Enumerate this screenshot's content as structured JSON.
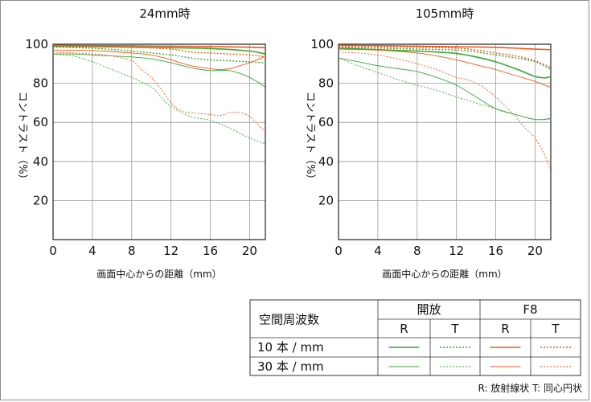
{
  "colors": {
    "green": "#3aa635",
    "orange": "#ec5a1c",
    "grid": "#9a9a9a",
    "axis": "#222222"
  },
  "chart_data": [
    {
      "type": "line",
      "title": "24mm時",
      "xlabel": "画面中心からの距離（mm）",
      "ylabel": "コントラスト（%）",
      "xlim": [
        0,
        21.6
      ],
      "ylim": [
        0,
        100
      ],
      "xticks": [
        0,
        4,
        8,
        12,
        16,
        20
      ],
      "yticks": [
        20,
        40,
        60,
        80,
        100
      ],
      "series": [
        {
          "name": "開放 R 10本/mm",
          "color": "green",
          "width": 1.6,
          "dash": "",
          "x": [
            0,
            4,
            8,
            12,
            16,
            20,
            21.6
          ],
          "y": [
            99,
            98.8,
            98.5,
            98.2,
            97.8,
            96.5,
            95
          ]
        },
        {
          "name": "開放 T 10本/mm",
          "color": "green",
          "width": 1.4,
          "dash": "2,2",
          "x": [
            0,
            4,
            8,
            12,
            14,
            16,
            18,
            20,
            21.6
          ],
          "y": [
            98.5,
            98,
            96.5,
            94.5,
            93,
            92,
            91.5,
            91,
            90.5
          ]
        },
        {
          "name": "F8 R 10本/mm",
          "color": "orange",
          "width": 1.6,
          "dash": "",
          "x": [
            0,
            4,
            8,
            12,
            16,
            20,
            21.6
          ],
          "y": [
            99.5,
            99.3,
            99.2,
            99,
            98.8,
            98.5,
            98.2
          ]
        },
        {
          "name": "F8 T 10本/mm",
          "color": "orange",
          "width": 1.4,
          "dash": "2,2",
          "x": [
            0,
            4,
            8,
            12,
            14,
            16,
            18,
            20,
            21.6
          ],
          "y": [
            99.2,
            99,
            98.5,
            97.5,
            96,
            95.5,
            95,
            94.5,
            93.5
          ]
        },
        {
          "name": "開放 R 30本/mm",
          "color": "green",
          "width": 0.9,
          "dash": "",
          "x": [
            0,
            2,
            4,
            6,
            8,
            10,
            12,
            14,
            16,
            18,
            20,
            21.6
          ],
          "y": [
            95,
            95,
            94.5,
            94,
            93.5,
            92.5,
            90.5,
            88,
            86.5,
            86.5,
            83,
            78
          ]
        },
        {
          "name": "開放 T 30本/mm",
          "color": "green",
          "width": 0.9,
          "dash": "2,2",
          "x": [
            0,
            2,
            4,
            6,
            8,
            10,
            11,
            12,
            14,
            16,
            18,
            20,
            21.6
          ],
          "y": [
            95,
            94,
            91,
            87,
            83,
            78,
            73,
            68,
            63,
            61,
            57,
            52,
            49
          ]
        },
        {
          "name": "F8 R 30本/mm",
          "color": "orange",
          "width": 0.9,
          "dash": "",
          "x": [
            0,
            4,
            8,
            10,
            12,
            14,
            16,
            17,
            18,
            19,
            20,
            21,
            21.6
          ],
          "y": [
            97,
            96.8,
            95.5,
            94.5,
            92,
            89,
            87.5,
            87,
            87.5,
            89,
            90.5,
            92.5,
            94
          ]
        },
        {
          "name": "F8 T 30本/mm",
          "color": "orange",
          "width": 0.9,
          "dash": "2,2",
          "x": [
            0,
            2,
            4,
            6,
            8,
            9,
            10,
            11,
            12,
            13,
            14,
            16,
            17,
            18,
            19,
            20,
            21,
            21.6
          ],
          "y": [
            96,
            95.5,
            95,
            94,
            91.5,
            87,
            83,
            77,
            70,
            66,
            65,
            64,
            63.5,
            65,
            65,
            63,
            58,
            55
          ]
        }
      ]
    },
    {
      "type": "line",
      "title": "105mm時",
      "xlabel": "画面中心からの距離（mm）",
      "ylabel": "コントラスト（%）",
      "xlim": [
        0,
        21.6
      ],
      "ylim": [
        0,
        100
      ],
      "xticks": [
        0,
        4,
        8,
        12,
        16,
        20
      ],
      "yticks": [
        20,
        40,
        60,
        80,
        100
      ],
      "series": [
        {
          "name": "開放 R 10本/mm",
          "color": "green",
          "width": 1.6,
          "dash": "",
          "x": [
            0,
            4,
            8,
            10,
            12,
            14,
            16,
            18,
            19,
            20,
            21,
            21.6
          ],
          "y": [
            98,
            97.2,
            96.5,
            96,
            95.3,
            93.5,
            91,
            87.5,
            85.5,
            83.5,
            82.8,
            83.5
          ]
        },
        {
          "name": "開放 T 10本/mm",
          "color": "green",
          "width": 1.4,
          "dash": "2,2",
          "x": [
            0,
            4,
            8,
            12,
            14,
            16,
            18,
            20,
            21.6
          ],
          "y": [
            98.5,
            98,
            97.5,
            97,
            96,
            94.5,
            93,
            91,
            87
          ]
        },
        {
          "name": "F8 R 10本/mm",
          "color": "orange",
          "width": 1.6,
          "dash": "",
          "x": [
            0,
            4,
            8,
            12,
            16,
            20,
            21.6
          ],
          "y": [
            99.5,
            99.3,
            99,
            98.7,
            98.4,
            97.5,
            97.2
          ]
        },
        {
          "name": "F8 T 10本/mm",
          "color": "orange",
          "width": 1.4,
          "dash": "2,2",
          "x": [
            0,
            4,
            8,
            12,
            14,
            16,
            18,
            20,
            21.6
          ],
          "y": [
            99,
            98.8,
            98.5,
            98,
            97,
            95.5,
            94,
            91.5,
            88
          ]
        },
        {
          "name": "開放 R 30本/mm",
          "color": "green",
          "width": 0.9,
          "dash": "",
          "x": [
            0,
            2,
            4,
            6,
            8,
            10,
            12,
            14,
            16,
            18,
            20,
            21.6
          ],
          "y": [
            93,
            91,
            89,
            87.5,
            86,
            83,
            79,
            73,
            67,
            64,
            61.5,
            62
          ]
        },
        {
          "name": "開放 T 30本/mm",
          "color": "green",
          "width": 0.9,
          "dash": "2,2",
          "x": [
            0,
            2,
            4,
            6,
            8,
            10,
            12,
            14,
            16,
            18,
            20,
            21.6
          ],
          "y": [
            93,
            89,
            85.5,
            82,
            79,
            76.5,
            73,
            70,
            67,
            64,
            61.5,
            61.5
          ]
        },
        {
          "name": "F8 R 30本/mm",
          "color": "orange",
          "width": 0.9,
          "dash": "",
          "x": [
            0,
            4,
            8,
            10,
            12,
            14,
            16,
            18,
            20,
            21,
            21.6
          ],
          "y": [
            97.5,
            97,
            95.5,
            94,
            92,
            89.5,
            87,
            84,
            81,
            79,
            78
          ]
        },
        {
          "name": "F8 T 30本/mm",
          "color": "orange",
          "width": 0.9,
          "dash": "2,2",
          "x": [
            0,
            2,
            4,
            6,
            8,
            10,
            12,
            13,
            14,
            15,
            16,
            17,
            18,
            19,
            20,
            21,
            21.6
          ],
          "y": [
            96,
            95.5,
            94.5,
            92.5,
            90,
            87,
            83,
            82,
            80,
            77,
            73,
            68,
            63,
            57,
            52,
            43,
            35
          ]
        }
      ]
    }
  ],
  "legend": {
    "header": "空間周波数",
    "groups": [
      "開放",
      "F8"
    ],
    "sub": [
      "R",
      "T",
      "R",
      "T"
    ],
    "rows": [
      "10 本 / mm",
      "30 本 / mm"
    ]
  },
  "note": "R: 放射線状  T: 同心円状"
}
